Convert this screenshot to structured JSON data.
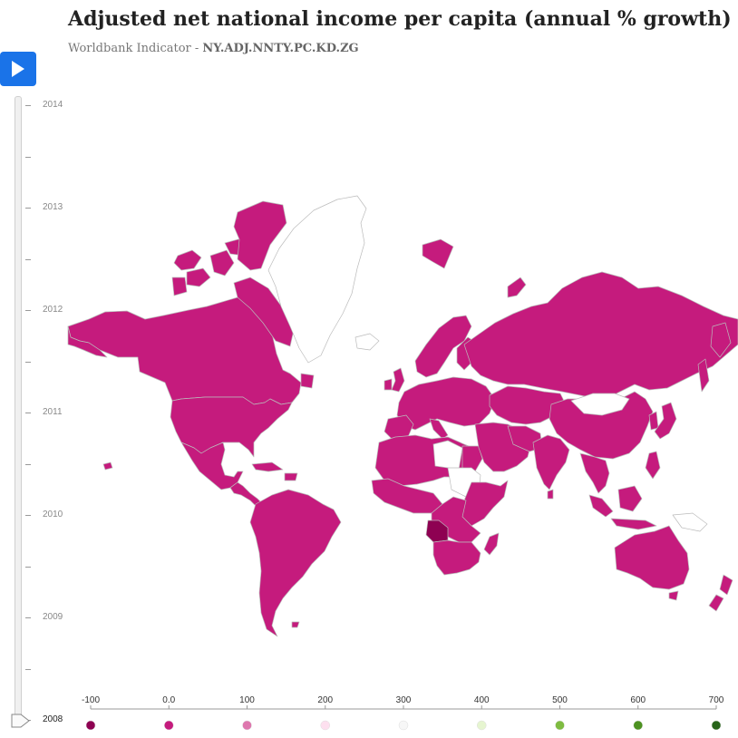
{
  "header": {
    "title": "Adjusted net national income per capita (annual % growth)",
    "subtitle_prefix": "Worldbank Indicator - ",
    "indicator_code": "NY.ADJ.NNTY.PC.KD.ZG"
  },
  "timeline": {
    "play_icon": "play-icon",
    "years": [
      "2014",
      "2013",
      "2012",
      "2011",
      "2010",
      "2009",
      "2008"
    ],
    "selected_year": "2008",
    "minor_ticks_between_years": 1
  },
  "map": {
    "default_fill": "#c51b7d",
    "no_data_fill": "#ffffff",
    "border_color": "#bbbbbb",
    "highlight": {
      "name": "Angola",
      "fill": "#8e0152"
    }
  },
  "legend": {
    "labels": [
      "-100",
      "0.0",
      "100",
      "200",
      "300",
      "400",
      "500",
      "600",
      "700"
    ],
    "colors": [
      "#8e0152",
      "#c51b7d",
      "#de77ae",
      "#fde0ef",
      "#f7f7f7",
      "#e6f5d0",
      "#7fbc41",
      "#4d9221",
      "#276419"
    ]
  }
}
